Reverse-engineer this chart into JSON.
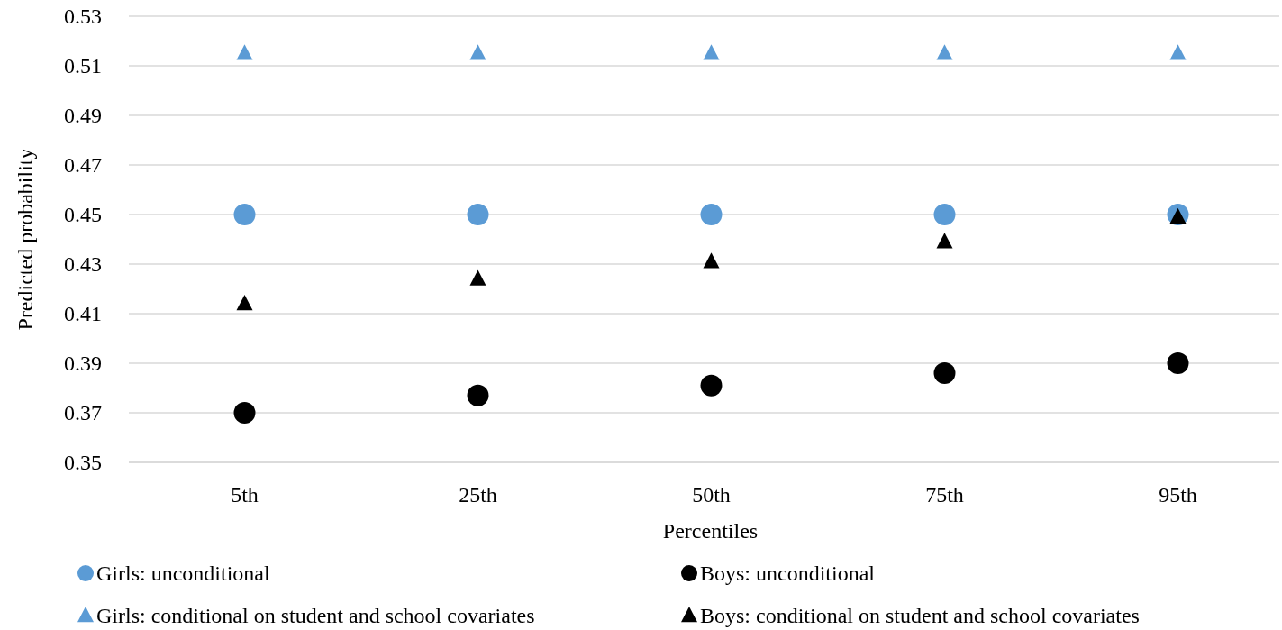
{
  "chart_data": {
    "type": "scatter",
    "xlabel": "Percentiles",
    "ylabel": "Predicted probability",
    "categories": [
      "5th",
      "25th",
      "50th",
      "75th",
      "95th"
    ],
    "series": [
      {
        "name": "Girls: unconditional",
        "color": "#5b9bd5",
        "marker": "circle",
        "values": [
          0.45,
          0.45,
          0.45,
          0.45,
          0.45
        ]
      },
      {
        "name": "Boys: unconditional",
        "color": "#000000",
        "marker": "circle",
        "values": [
          0.37,
          0.377,
          0.381,
          0.386,
          0.39
        ]
      },
      {
        "name": "Girls: conditional on student and school covariates",
        "color": "#5b9bd5",
        "marker": "triangle",
        "values": [
          0.515,
          0.515,
          0.515,
          0.515,
          0.515
        ]
      },
      {
        "name": "Boys: conditional on student and school covariates",
        "color": "#000000",
        "marker": "triangle",
        "values": [
          0.414,
          0.424,
          0.431,
          0.439,
          0.449
        ]
      }
    ],
    "ylim": [
      0.35,
      0.53
    ],
    "yticks": [
      0.35,
      0.37,
      0.39,
      0.41,
      0.43,
      0.45,
      0.47,
      0.49,
      0.51,
      0.53
    ],
    "grid": "y",
    "legend": "bottom"
  }
}
